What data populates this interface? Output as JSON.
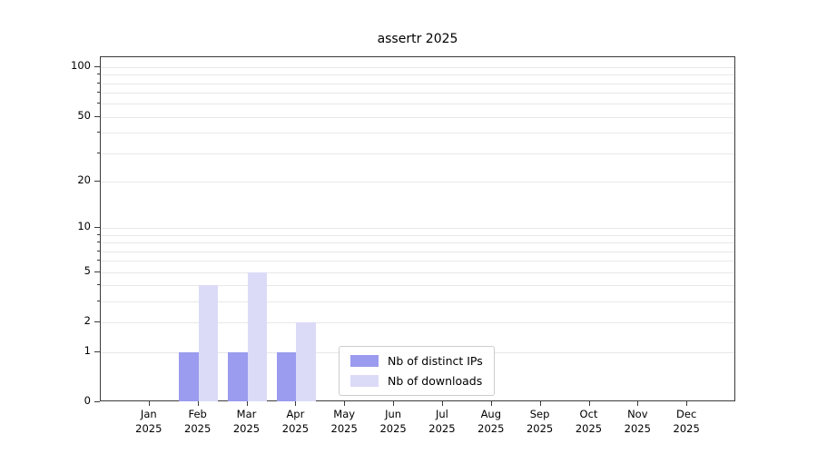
{
  "chart_data": {
    "type": "bar",
    "title": "assertr 2025",
    "categories": [
      "Jan",
      "Feb",
      "Mar",
      "Apr",
      "May",
      "Jun",
      "Jul",
      "Aug",
      "Sep",
      "Oct",
      "Nov",
      "Dec"
    ],
    "year": "2025",
    "series": [
      {
        "name": "Nb of distinct IPs",
        "color": "#9b9bef",
        "values": [
          0,
          1,
          1,
          1,
          0,
          0,
          0,
          0,
          0,
          0,
          0,
          0
        ]
      },
      {
        "name": "Nb of downloads",
        "color": "#dbdbf8",
        "values": [
          0,
          4,
          5,
          2,
          0,
          0,
          0,
          0,
          0,
          0,
          0,
          0
        ]
      }
    ],
    "y_axis": {
      "scale": "log1p",
      "ticks": [
        0,
        1,
        2,
        5,
        10,
        20,
        50,
        100
      ],
      "max": 100
    },
    "x_axis": {
      "label_lines": 2
    },
    "grid": true,
    "legend_position": "bottom-center",
    "colors": {
      "background": "#ffffff",
      "gridline": "#e8e8e8",
      "axis": "#3a3a3a"
    }
  }
}
